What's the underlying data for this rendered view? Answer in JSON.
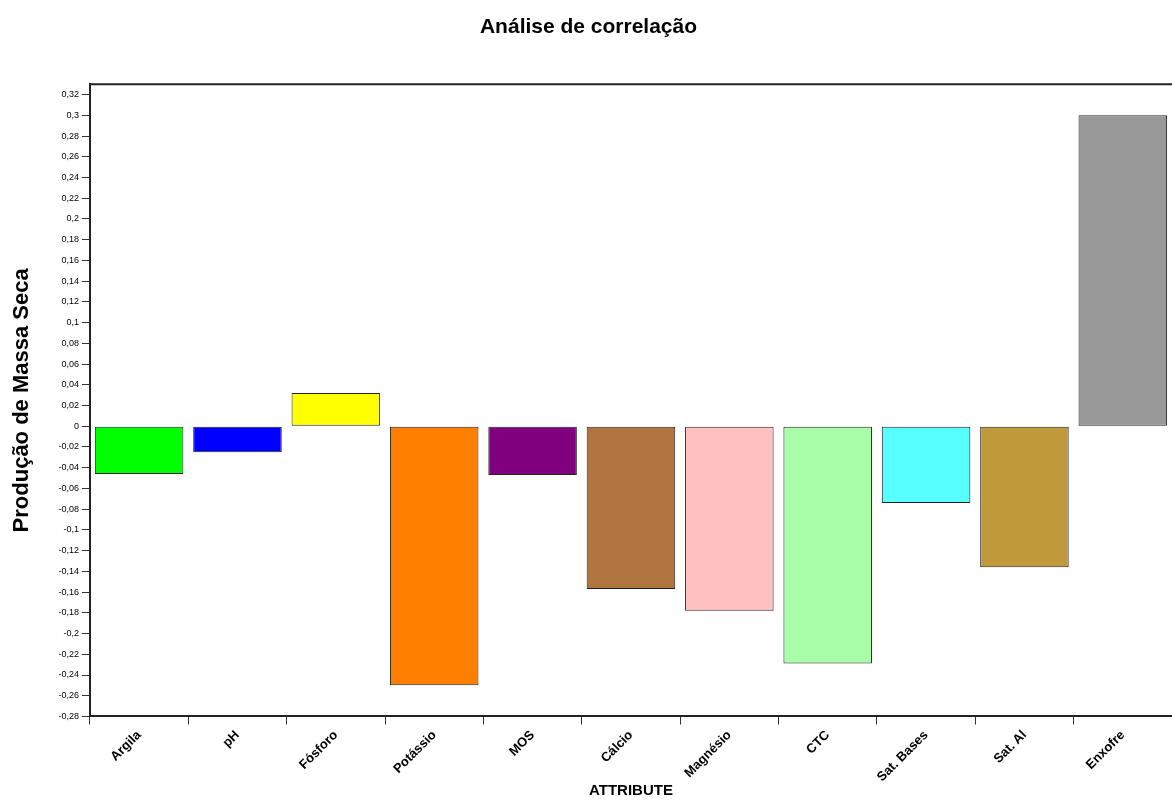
{
  "chart_data": {
    "type": "bar",
    "title": "Análise de correlação",
    "xlabel": "ATTRIBUTE",
    "ylabel": "Produção de Massa Seca",
    "categories": [
      "Argila",
      "pH",
      "Fósforo",
      "Potássio",
      "MOS",
      "Cálcio",
      "Magnésio",
      "CTC",
      "Sat. Bases",
      "Sat. Al",
      "Enxofre"
    ],
    "values": [
      -0.046,
      -0.025,
      0.032,
      -0.25,
      -0.047,
      -0.157,
      -0.178,
      -0.229,
      -0.074,
      -0.136,
      0.3
    ],
    "colors": [
      "#00ff00",
      "#0000ff",
      "#ffff00",
      "#ff8000",
      "#800080",
      "#b07540",
      "#ffc0c0",
      "#a8ffa8",
      "#58ffff",
      "#c09a3a",
      "#999999"
    ],
    "ylim": [
      -0.28,
      0.33
    ],
    "yticks": [
      {
        "value": -0.28,
        "label": "-0,28"
      },
      {
        "value": -0.26,
        "label": "-0,26"
      },
      {
        "value": -0.24,
        "label": "-0,24"
      },
      {
        "value": -0.22,
        "label": "-0,22"
      },
      {
        "value": -0.2,
        "label": "-0,2"
      },
      {
        "value": -0.18,
        "label": "-0,18"
      },
      {
        "value": -0.16,
        "label": "-0,16"
      },
      {
        "value": -0.14,
        "label": "-0,14"
      },
      {
        "value": -0.12,
        "label": "-0,12"
      },
      {
        "value": -0.1,
        "label": "-0,1"
      },
      {
        "value": -0.08,
        "label": "-0,08"
      },
      {
        "value": -0.06,
        "label": "-0,06"
      },
      {
        "value": -0.04,
        "label": "-0,04"
      },
      {
        "value": -0.02,
        "label": "-0,02"
      },
      {
        "value": 0,
        "label": "0"
      },
      {
        "value": 0.02,
        "label": "0,02"
      },
      {
        "value": 0.04,
        "label": "0,04"
      },
      {
        "value": 0.06,
        "label": "0,06"
      },
      {
        "value": 0.08,
        "label": "0,08"
      },
      {
        "value": 0.1,
        "label": "0,1"
      },
      {
        "value": 0.12,
        "label": "0,12"
      },
      {
        "value": 0.14,
        "label": "0,14"
      },
      {
        "value": 0.16,
        "label": "0,16"
      },
      {
        "value": 0.18,
        "label": "0,18"
      },
      {
        "value": 0.2,
        "label": "0,2"
      },
      {
        "value": 0.22,
        "label": "0,22"
      },
      {
        "value": 0.24,
        "label": "0,24"
      },
      {
        "value": 0.26,
        "label": "0,26"
      },
      {
        "value": 0.28,
        "label": "0,28"
      },
      {
        "value": 0.3,
        "label": "0,3"
      },
      {
        "value": 0.32,
        "label": "0,32"
      }
    ],
    "legend": false
  }
}
